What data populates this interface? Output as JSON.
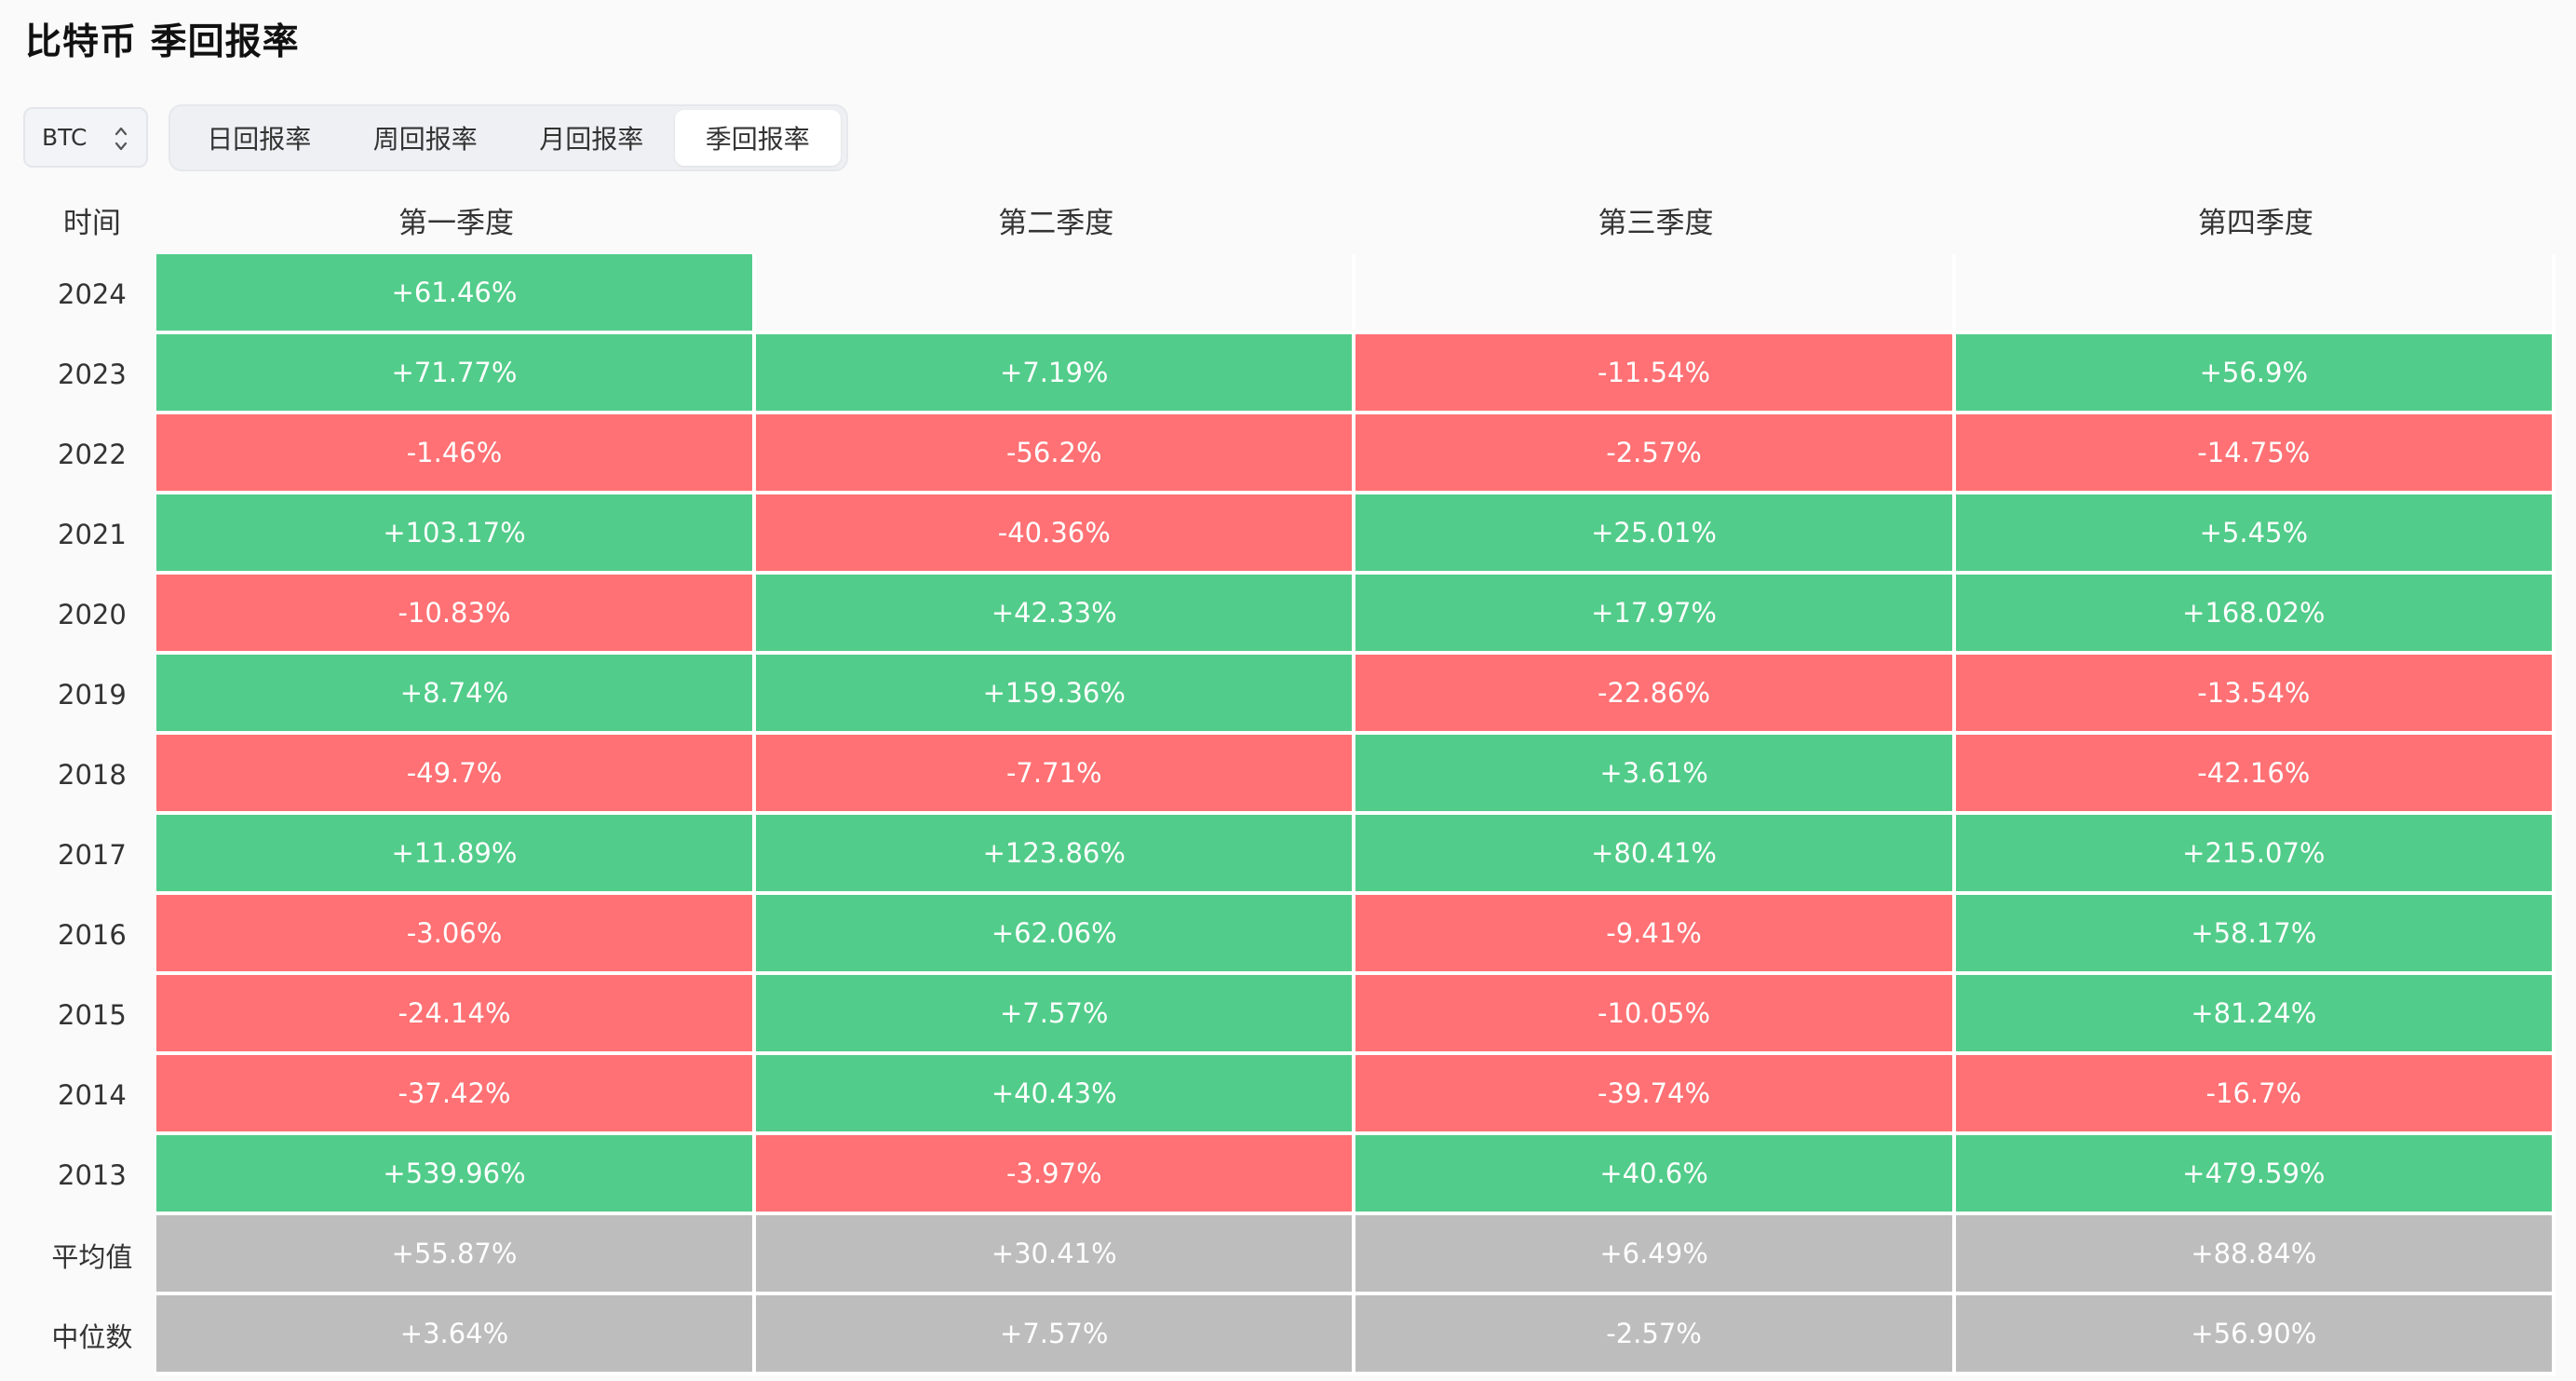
{
  "title": "比特币 季回报率",
  "asset_select": {
    "value": "BTC"
  },
  "tabs": [
    {
      "label": "日回报率",
      "active": false
    },
    {
      "label": "周回报率",
      "active": false
    },
    {
      "label": "月回报率",
      "active": false
    },
    {
      "label": "季回报率",
      "active": true
    }
  ],
  "colors": {
    "positive": "#52cc8a",
    "negative": "#ff7174",
    "stat": "#bdbdbd"
  },
  "table": {
    "headers": [
      "时间",
      "第一季度",
      "第二季度",
      "第三季度",
      "第四季度"
    ],
    "rows": [
      {
        "year": "2024",
        "values": [
          "+61.46%",
          "",
          "",
          ""
        ]
      },
      {
        "year": "2023",
        "values": [
          "+71.77%",
          "+7.19%",
          "-11.54%",
          "+56.9%"
        ]
      },
      {
        "year": "2022",
        "values": [
          "-1.46%",
          "-56.2%",
          "-2.57%",
          "-14.75%"
        ]
      },
      {
        "year": "2021",
        "values": [
          "+103.17%",
          "-40.36%",
          "+25.01%",
          "+5.45%"
        ]
      },
      {
        "year": "2020",
        "values": [
          "-10.83%",
          "+42.33%",
          "+17.97%",
          "+168.02%"
        ]
      },
      {
        "year": "2019",
        "values": [
          "+8.74%",
          "+159.36%",
          "-22.86%",
          "-13.54%"
        ]
      },
      {
        "year": "2018",
        "values": [
          "-49.7%",
          "-7.71%",
          "+3.61%",
          "-42.16%"
        ]
      },
      {
        "year": "2017",
        "values": [
          "+11.89%",
          "+123.86%",
          "+80.41%",
          "+215.07%"
        ]
      },
      {
        "year": "2016",
        "values": [
          "-3.06%",
          "+62.06%",
          "-9.41%",
          "+58.17%"
        ]
      },
      {
        "year": "2015",
        "values": [
          "-24.14%",
          "+7.57%",
          "-10.05%",
          "+81.24%"
        ]
      },
      {
        "year": "2014",
        "values": [
          "-37.42%",
          "+40.43%",
          "-39.74%",
          "-16.7%"
        ]
      },
      {
        "year": "2013",
        "values": [
          "+539.96%",
          "-3.97%",
          "+40.6%",
          "+479.59%"
        ]
      }
    ],
    "stats": [
      {
        "label": "平均值",
        "values": [
          "+55.87%",
          "+30.41%",
          "+6.49%",
          "+88.84%"
        ]
      },
      {
        "label": "中位数",
        "values": [
          "+3.64%",
          "+7.57%",
          "-2.57%",
          "+56.90%"
        ]
      }
    ]
  }
}
